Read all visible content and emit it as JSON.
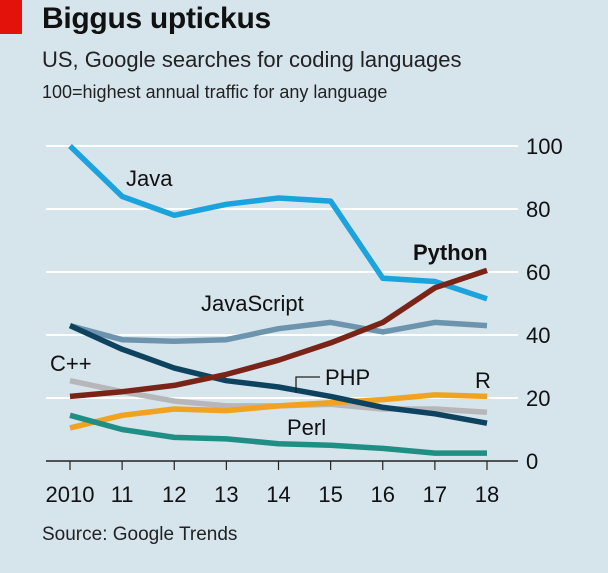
{
  "header": {
    "title": "Biggus uptickus",
    "subtitle": "US, Google searches for coding languages",
    "note": "100=highest annual traffic for any language"
  },
  "source": "Source: Google Trends",
  "colors": {
    "background": "#d6e4ec",
    "brand_red": "#e3120b",
    "grid": "#ffffff"
  },
  "chart_data": {
    "type": "line",
    "x": [
      2010,
      2011,
      2012,
      2013,
      2014,
      2015,
      2016,
      2017,
      2018
    ],
    "x_tick_labels": [
      "2010",
      "11",
      "12",
      "13",
      "14",
      "15",
      "16",
      "17",
      "18"
    ],
    "ylim": [
      0,
      100
    ],
    "y_ticks": [
      0,
      20,
      40,
      60,
      80,
      100
    ],
    "y_axis_side": "right",
    "grid": true,
    "series": [
      {
        "name": "Java",
        "color": "#1aa3dd",
        "values": [
          100,
          84,
          78,
          81.5,
          83.5,
          82.5,
          58,
          57,
          51.5
        ]
      },
      {
        "name": "Python",
        "color": "#7a2418",
        "values": [
          20.5,
          22,
          24,
          27.5,
          32,
          37.5,
          44,
          55,
          60.5
        ]
      },
      {
        "name": "JavaScript",
        "color": "#6c95ad",
        "values": [
          43,
          38.5,
          38,
          38.5,
          42,
          44,
          41,
          44,
          43
        ]
      },
      {
        "name": "C++",
        "color": "#b7b7b9",
        "values": [
          25.5,
          22,
          19,
          17.5,
          17.5,
          18,
          16.5,
          16.5,
          15.5
        ]
      },
      {
        "name": "PHP",
        "color": "#0e4360",
        "values": [
          43,
          35.5,
          29.5,
          25.5,
          23.5,
          20.5,
          17,
          15,
          12
        ]
      },
      {
        "name": "R",
        "color": "#f0a220",
        "values": [
          10.5,
          14.5,
          16.5,
          16,
          17.5,
          18.5,
          19.5,
          21,
          20.5
        ]
      },
      {
        "name": "Perl",
        "color": "#1f8f85",
        "values": [
          14.5,
          10,
          7.5,
          7,
          5.5,
          5,
          4,
          2.5,
          2.5
        ]
      }
    ]
  }
}
